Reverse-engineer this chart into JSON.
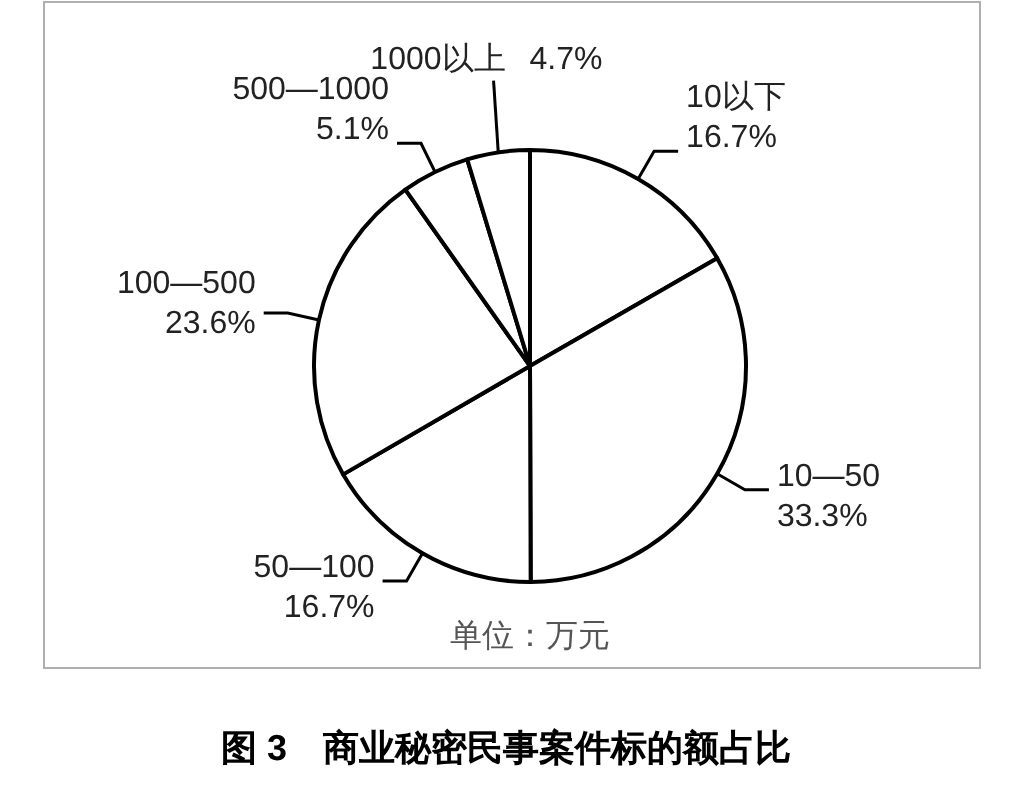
{
  "chart_data": {
    "type": "pie",
    "title": "图 3　商业秘密民事案件标的额占比",
    "categories": [
      "10以下",
      "10—50",
      "50—100",
      "100—500",
      "500—1000",
      "1000以上"
    ],
    "values": [
      16.7,
      33.3,
      16.7,
      23.6,
      5.1,
      4.7
    ],
    "colors": [
      "#ffffff",
      "#ffffff",
      "#ffffff",
      "#ffffff",
      "#ffffff",
      "#ffffff"
    ],
    "value_labels": [
      "16.7%",
      "33.3%",
      "16.7%",
      "23.6%",
      "5.1%",
      "4.7%"
    ],
    "annotations": [
      "单位：万元"
    ]
  }
}
